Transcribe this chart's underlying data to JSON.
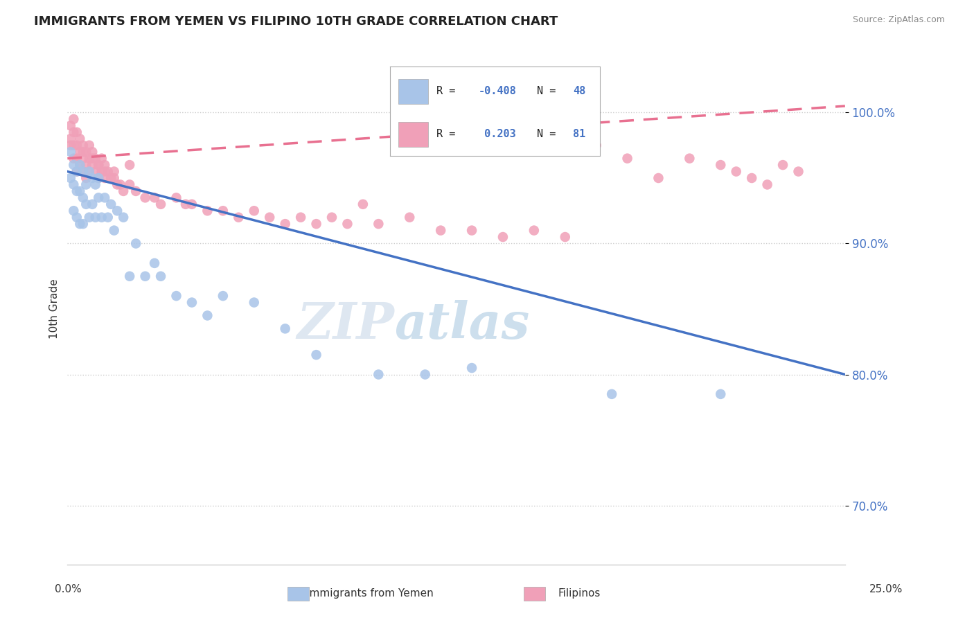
{
  "title": "IMMIGRANTS FROM YEMEN VS FILIPINO 10TH GRADE CORRELATION CHART",
  "source": "Source: ZipAtlas.com",
  "ylabel": "10th Grade",
  "ylabel_ticks": [
    "70.0%",
    "80.0%",
    "90.0%",
    "100.0%"
  ],
  "ylabel_values": [
    0.7,
    0.8,
    0.9,
    1.0
  ],
  "x_min": 0.0,
  "x_max": 0.25,
  "y_min": 0.655,
  "y_max": 1.045,
  "watermark_zip": "ZIP",
  "watermark_atlas": "atlas",
  "legend_label1": "Immigrants from Yemen",
  "legend_label2": "Filipinos",
  "color_blue": "#a8c4e8",
  "color_pink": "#f0a0b8",
  "trendline_blue": "#4472c4",
  "trendline_pink": "#e87090",
  "blue_r": "-0.408",
  "blue_n": "48",
  "pink_r": "0.203",
  "pink_n": "81",
  "blue_trendline_x": [
    0.0,
    0.25
  ],
  "blue_trendline_y": [
    0.955,
    0.8
  ],
  "pink_trendline_x": [
    0.0,
    0.25
  ],
  "pink_trendline_y": [
    0.965,
    1.005
  ],
  "blue_scatter_x": [
    0.001,
    0.001,
    0.002,
    0.002,
    0.002,
    0.003,
    0.003,
    0.003,
    0.004,
    0.004,
    0.004,
    0.005,
    0.005,
    0.005,
    0.006,
    0.006,
    0.007,
    0.007,
    0.008,
    0.008,
    0.009,
    0.009,
    0.01,
    0.01,
    0.011,
    0.012,
    0.013,
    0.014,
    0.015,
    0.016,
    0.018,
    0.02,
    0.022,
    0.025,
    0.028,
    0.03,
    0.035,
    0.04,
    0.045,
    0.05,
    0.06,
    0.07,
    0.08,
    0.1,
    0.115,
    0.13,
    0.175,
    0.21
  ],
  "blue_scatter_y": [
    0.97,
    0.95,
    0.96,
    0.945,
    0.925,
    0.955,
    0.94,
    0.92,
    0.96,
    0.94,
    0.915,
    0.955,
    0.935,
    0.915,
    0.945,
    0.93,
    0.955,
    0.92,
    0.95,
    0.93,
    0.945,
    0.92,
    0.95,
    0.935,
    0.92,
    0.935,
    0.92,
    0.93,
    0.91,
    0.925,
    0.92,
    0.875,
    0.9,
    0.875,
    0.885,
    0.875,
    0.86,
    0.855,
    0.845,
    0.86,
    0.855,
    0.835,
    0.815,
    0.8,
    0.8,
    0.805,
    0.785,
    0.785
  ],
  "pink_scatter_x": [
    0.001,
    0.001,
    0.001,
    0.002,
    0.002,
    0.002,
    0.002,
    0.003,
    0.003,
    0.003,
    0.003,
    0.004,
    0.004,
    0.004,
    0.005,
    0.005,
    0.005,
    0.006,
    0.006,
    0.006,
    0.007,
    0.007,
    0.007,
    0.008,
    0.008,
    0.009,
    0.009,
    0.01,
    0.01,
    0.011,
    0.011,
    0.012,
    0.012,
    0.013,
    0.014,
    0.015,
    0.016,
    0.017,
    0.018,
    0.02,
    0.022,
    0.025,
    0.028,
    0.03,
    0.035,
    0.038,
    0.04,
    0.045,
    0.05,
    0.055,
    0.06,
    0.065,
    0.07,
    0.075,
    0.08,
    0.085,
    0.09,
    0.095,
    0.1,
    0.11,
    0.12,
    0.13,
    0.14,
    0.15,
    0.16,
    0.17,
    0.18,
    0.19,
    0.2,
    0.21,
    0.215,
    0.22,
    0.225,
    0.23,
    0.235,
    0.005,
    0.01,
    0.015,
    0.02,
    0.008,
    0.012
  ],
  "pink_scatter_y": [
    0.99,
    0.98,
    0.975,
    0.995,
    0.985,
    0.975,
    0.965,
    0.985,
    0.975,
    0.965,
    0.955,
    0.98,
    0.97,
    0.96,
    0.975,
    0.965,
    0.955,
    0.97,
    0.96,
    0.95,
    0.975,
    0.965,
    0.955,
    0.97,
    0.96,
    0.965,
    0.955,
    0.96,
    0.95,
    0.965,
    0.955,
    0.96,
    0.95,
    0.955,
    0.95,
    0.955,
    0.945,
    0.945,
    0.94,
    0.945,
    0.94,
    0.935,
    0.935,
    0.93,
    0.935,
    0.93,
    0.93,
    0.925,
    0.925,
    0.92,
    0.925,
    0.92,
    0.915,
    0.92,
    0.915,
    0.92,
    0.915,
    0.93,
    0.915,
    0.92,
    0.91,
    0.91,
    0.905,
    0.91,
    0.905,
    0.975,
    0.965,
    0.95,
    0.965,
    0.96,
    0.955,
    0.95,
    0.945,
    0.96,
    0.955,
    0.97,
    0.96,
    0.95,
    0.96,
    0.965,
    0.955
  ]
}
